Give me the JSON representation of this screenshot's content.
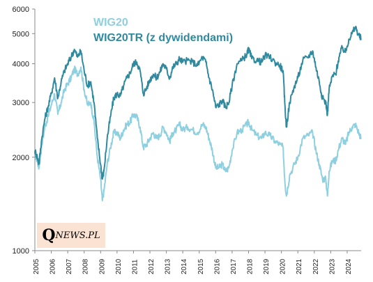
{
  "chart_data": {
    "type": "line",
    "y_scale": "log",
    "ylim": [
      1000,
      6000
    ],
    "y_ticks": [
      1000,
      2000,
      3000,
      4000,
      5000,
      6000
    ],
    "x_ticks": [
      "2005",
      "2006",
      "2007",
      "2008",
      "2009",
      "2010",
      "2011",
      "2012",
      "2013",
      "2014",
      "2015",
      "2016",
      "2017",
      "2018",
      "2019",
      "2020",
      "2021",
      "2022",
      "2023",
      "2024"
    ],
    "xlim": [
      2005.0,
      2024.85
    ],
    "grid": false,
    "legend_position": "top-center",
    "series": [
      {
        "name": "WIG20",
        "color": "#8ecfe0",
        "x": [
          2005.0,
          2005.15,
          2005.25,
          2005.4,
          2005.6,
          2005.8,
          2006.0,
          2006.2,
          2006.4,
          2006.6,
          2006.8,
          2007.0,
          2007.2,
          2007.4,
          2007.6,
          2007.8,
          2008.0,
          2008.2,
          2008.4,
          2008.6,
          2008.8,
          2009.0,
          2009.1,
          2009.2,
          2009.4,
          2009.6,
          2009.8,
          2010.0,
          2010.2,
          2010.4,
          2010.6,
          2010.8,
          2011.0,
          2011.2,
          2011.4,
          2011.6,
          2011.8,
          2012.0,
          2012.2,
          2012.4,
          2012.6,
          2012.8,
          2013.0,
          2013.2,
          2013.4,
          2013.6,
          2013.8,
          2014.0,
          2014.3,
          2014.6,
          2014.9,
          2015.2,
          2015.4,
          2015.6,
          2015.8,
          2016.0,
          2016.2,
          2016.4,
          2016.6,
          2016.8,
          2017.0,
          2017.3,
          2017.6,
          2017.9,
          2018.0,
          2018.2,
          2018.5,
          2018.8,
          2019.0,
          2019.3,
          2019.6,
          2019.9,
          2020.1,
          2020.2,
          2020.3,
          2020.5,
          2020.8,
          2021.0,
          2021.3,
          2021.6,
          2021.9,
          2022.1,
          2022.3,
          2022.5,
          2022.7,
          2022.8,
          2022.9,
          2023.1,
          2023.3,
          2023.5,
          2023.7,
          2023.9,
          2024.1,
          2024.3,
          2024.5,
          2024.7,
          2024.85
        ],
        "values": [
          2050,
          1950,
          1850,
          2150,
          2500,
          2700,
          2950,
          3200,
          2750,
          3000,
          3300,
          3450,
          3600,
          3850,
          3700,
          3900,
          3300,
          2950,
          3000,
          2600,
          2000,
          1700,
          1450,
          1550,
          1900,
          2150,
          2400,
          2400,
          2300,
          2450,
          2550,
          2600,
          2750,
          2700,
          2500,
          2150,
          2200,
          2300,
          2400,
          2300,
          2350,
          2500,
          2400,
          2250,
          2400,
          2450,
          2550,
          2450,
          2500,
          2450,
          2400,
          2550,
          2500,
          2300,
          2100,
          1850,
          1850,
          1900,
          1800,
          1850,
          2100,
          2400,
          2450,
          2550,
          2600,
          2450,
          2350,
          2300,
          2400,
          2350,
          2250,
          2200,
          2150,
          1700,
          1500,
          1750,
          1900,
          2000,
          2300,
          2350,
          2400,
          2100,
          1900,
          1700,
          1700,
          1500,
          1800,
          1950,
          1950,
          2150,
          2300,
          2200,
          2400,
          2500,
          2550,
          2400,
          2300
        ]
      },
      {
        "name": "WIG20TR (z dywidendami)",
        "color": "#2f8aa0",
        "x": [
          2005.0,
          2005.15,
          2005.25,
          2005.4,
          2005.6,
          2005.8,
          2006.0,
          2006.2,
          2006.4,
          2006.6,
          2006.8,
          2007.0,
          2007.2,
          2007.4,
          2007.6,
          2007.8,
          2008.0,
          2008.2,
          2008.4,
          2008.6,
          2008.8,
          2009.0,
          2009.1,
          2009.2,
          2009.4,
          2009.6,
          2009.8,
          2010.0,
          2010.2,
          2010.4,
          2010.6,
          2010.8,
          2011.0,
          2011.2,
          2011.4,
          2011.6,
          2011.8,
          2012.0,
          2012.2,
          2012.4,
          2012.6,
          2012.8,
          2013.0,
          2013.2,
          2013.4,
          2013.6,
          2013.8,
          2014.0,
          2014.3,
          2014.6,
          2014.9,
          2015.2,
          2015.4,
          2015.6,
          2015.8,
          2016.0,
          2016.2,
          2016.4,
          2016.6,
          2016.8,
          2017.0,
          2017.3,
          2017.6,
          2017.9,
          2018.0,
          2018.2,
          2018.5,
          2018.8,
          2019.0,
          2019.3,
          2019.6,
          2019.9,
          2020.1,
          2020.2,
          2020.3,
          2020.5,
          2020.8,
          2021.0,
          2021.3,
          2021.6,
          2021.9,
          2022.1,
          2022.3,
          2022.5,
          2022.7,
          2022.8,
          2022.9,
          2023.1,
          2023.3,
          2023.5,
          2023.7,
          2023.9,
          2024.1,
          2024.3,
          2024.5,
          2024.7,
          2024.85
        ],
        "values": [
          2100,
          2000,
          1900,
          2250,
          2650,
          2900,
          3200,
          3600,
          3100,
          3500,
          3800,
          4000,
          4200,
          4450,
          4200,
          4400,
          3800,
          3400,
          3500,
          3000,
          2300,
          1900,
          1700,
          1800,
          2300,
          2700,
          3100,
          3200,
          3150,
          3400,
          3600,
          3750,
          4000,
          4050,
          3800,
          3200,
          3350,
          3550,
          3700,
          3600,
          3750,
          4000,
          3850,
          3600,
          3900,
          4000,
          4150,
          4050,
          4100,
          4050,
          3950,
          4200,
          4050,
          3600,
          3300,
          2900,
          2950,
          3050,
          2900,
          3000,
          3400,
          4000,
          4100,
          4300,
          4450,
          4150,
          4100,
          4050,
          4250,
          4200,
          4050,
          3950,
          3800,
          3000,
          2500,
          3000,
          3400,
          3600,
          4100,
          4200,
          4400,
          3900,
          3500,
          3100,
          3000,
          2750,
          3300,
          3650,
          3700,
          4200,
          4500,
          4350,
          4800,
          5000,
          5250,
          4950,
          4800
        ]
      }
    ]
  },
  "logo": {
    "q": "Q",
    "rest": "NEWS.PL"
  }
}
